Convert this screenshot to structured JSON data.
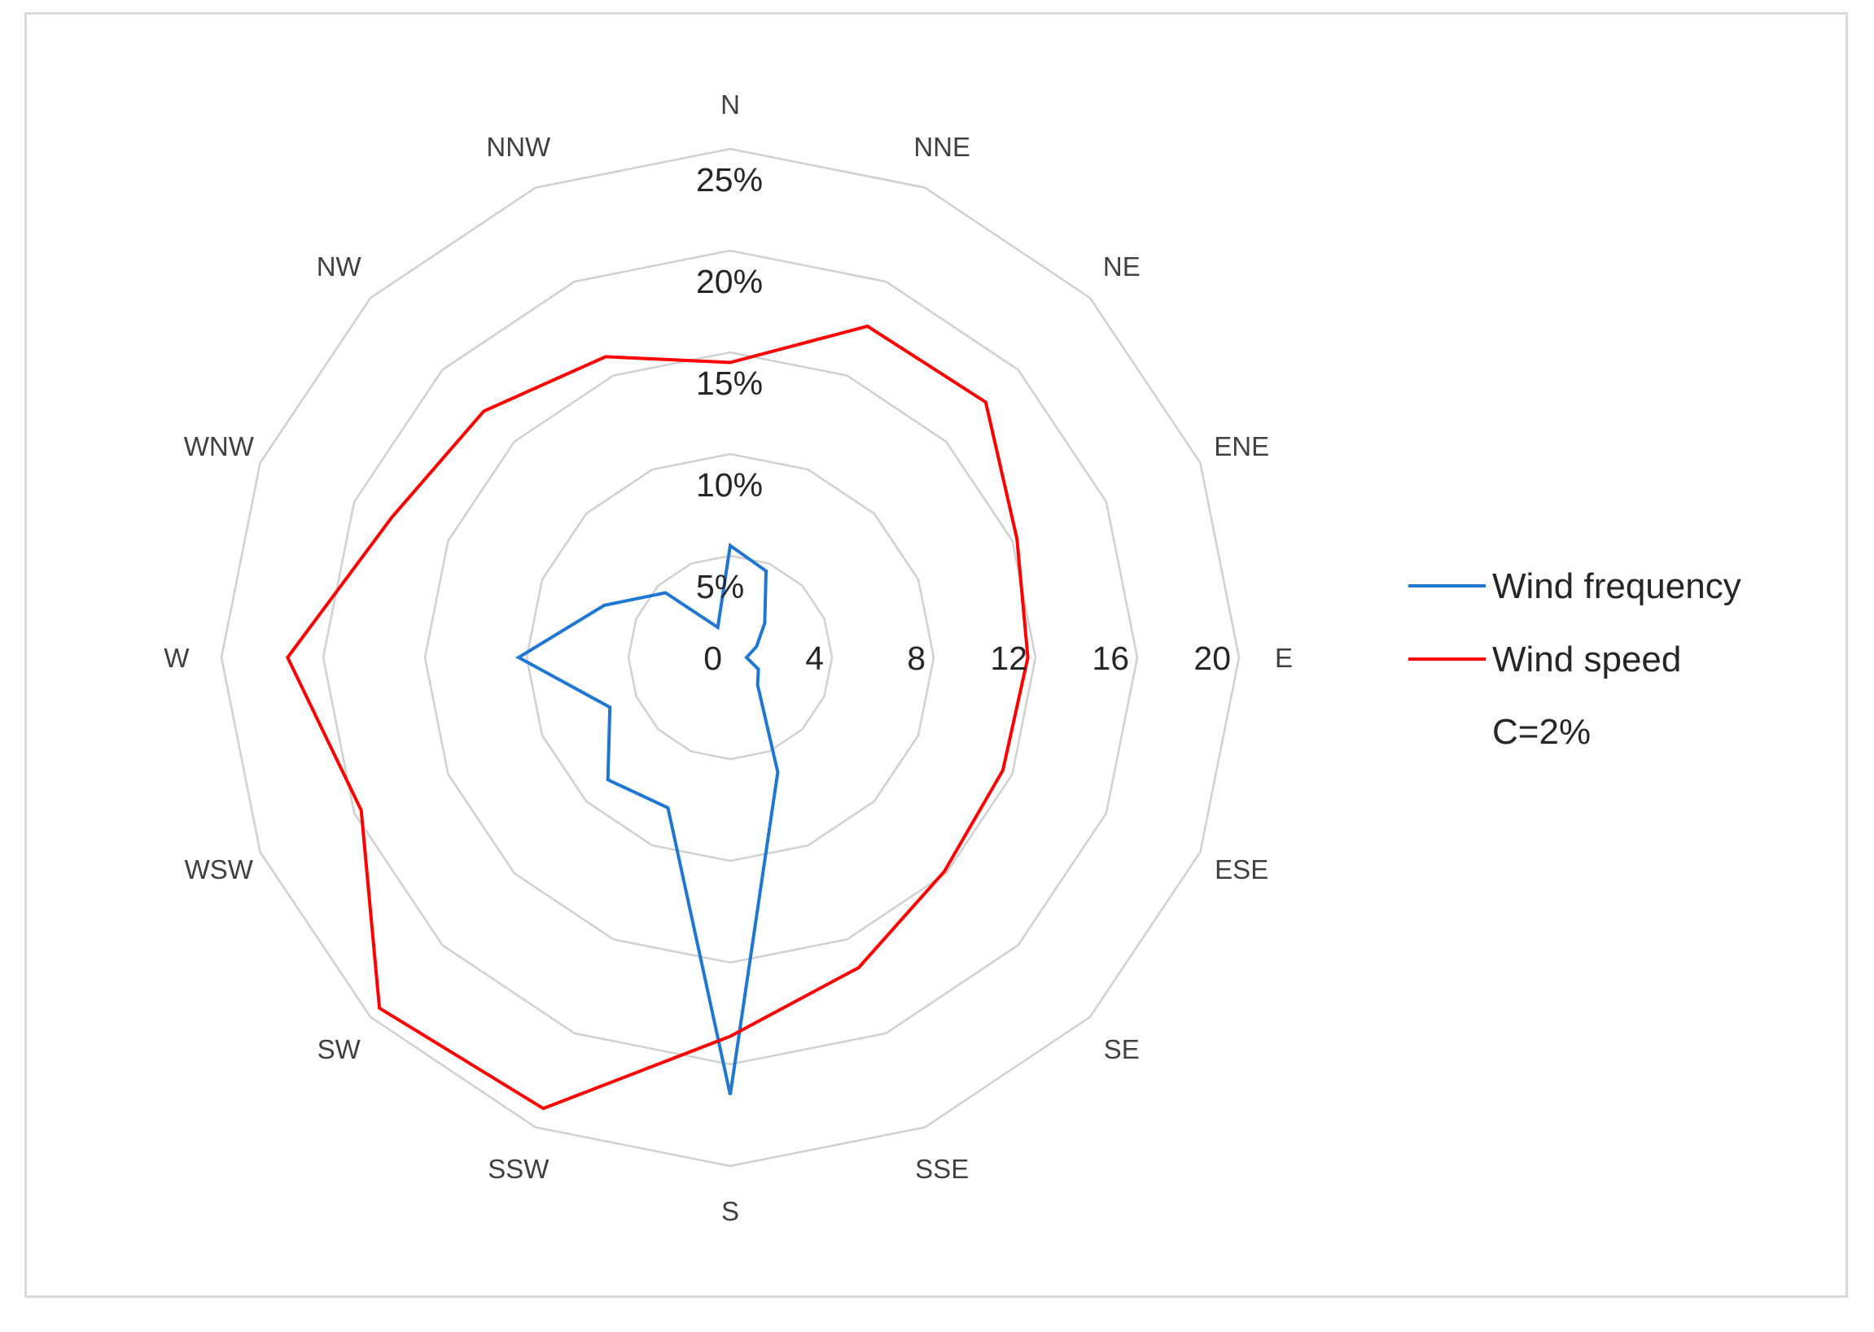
{
  "chart_data": {
    "type": "radar",
    "directions": [
      "N",
      "NNE",
      "NE",
      "ENE",
      "E",
      "ESE",
      "SE",
      "SSE",
      "S",
      "SSW",
      "SW",
      "WSW",
      "W",
      "WNW",
      "NW",
      "NNW"
    ],
    "frequency_axis": {
      "ticks": [
        "5%",
        "10%",
        "15%",
        "20%",
        "25%"
      ],
      "max": 25
    },
    "speed_axis": {
      "ticks": [
        "0",
        "4",
        "8",
        "12",
        "16",
        "20"
      ],
      "max": 20
    },
    "series": [
      {
        "name": "Wind frequency",
        "color": "#1f77d4",
        "values_percent": [
          5.5,
          4.6,
          2.4,
          1.4,
          0.8,
          1.5,
          1.9,
          6.1,
          21.5,
          8.0,
          8.5,
          6.4,
          10.4,
          6.7,
          4.5,
          1.6
        ]
      },
      {
        "name": "Wind speed",
        "color": "#ff0000",
        "values": [
          11.6,
          14.1,
          14.2,
          12.2,
          11.7,
          11.6,
          11.9,
          13.2,
          14.9,
          19.2,
          19.5,
          15.7,
          17.4,
          14.4,
          13.7,
          12.8
        ]
      }
    ],
    "annotation": "C=2%"
  }
}
